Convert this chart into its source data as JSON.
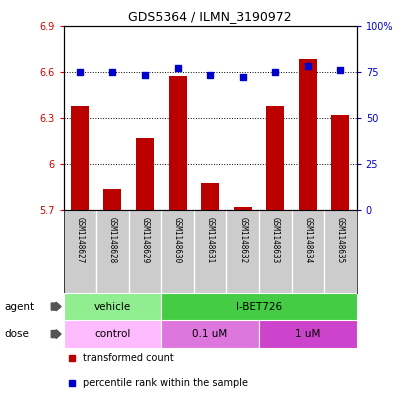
{
  "title": "GDS5364 / ILMN_3190972",
  "samples": [
    "GSM1148627",
    "GSM1148628",
    "GSM1148629",
    "GSM1148630",
    "GSM1148631",
    "GSM1148632",
    "GSM1148633",
    "GSM1148634",
    "GSM1148635"
  ],
  "bar_values": [
    6.38,
    5.84,
    6.17,
    6.57,
    5.88,
    5.72,
    6.38,
    6.68,
    6.32
  ],
  "percentile_values": [
    75,
    75,
    73,
    77,
    73,
    72,
    75,
    78,
    76
  ],
  "bar_color": "#bb0000",
  "dot_color": "#0000cc",
  "ylim_left": [
    5.7,
    6.9
  ],
  "ylim_right": [
    0,
    100
  ],
  "yticks_left": [
    5.7,
    6.0,
    6.3,
    6.6,
    6.9
  ],
  "yticks_right": [
    0,
    25,
    50,
    75,
    100
  ],
  "ytick_labels_left": [
    "5.7",
    "6",
    "6.3",
    "6.6",
    "6.9"
  ],
  "ytick_labels_right": [
    "0",
    "25",
    "50",
    "75",
    "100%"
  ],
  "hlines": [
    6.0,
    6.3,
    6.6
  ],
  "agent_groups": [
    {
      "label": "vehicle",
      "start": 0,
      "end": 3,
      "color": "#90ee90"
    },
    {
      "label": "I-BET726",
      "start": 3,
      "end": 9,
      "color": "#44cc44"
    }
  ],
  "dose_groups": [
    {
      "label": "control",
      "start": 0,
      "end": 3,
      "color": "#ffbbff"
    },
    {
      "label": "0.1 uM",
      "start": 3,
      "end": 6,
      "color": "#dd77dd"
    },
    {
      "label": "1 uM",
      "start": 6,
      "end": 9,
      "color": "#cc44cc"
    }
  ],
  "legend_items": [
    {
      "label": "transformed count",
      "color": "#bb0000"
    },
    {
      "label": "percentile rank within the sample",
      "color": "#0000cc"
    }
  ],
  "bar_bottom": 5.7,
  "left_color": "#cc0000",
  "right_color": "#0000cc",
  "bg_color": "#ffffff",
  "sample_bg": "#cccccc",
  "agent_label_color": "#555555",
  "label_arrow_color": "#888888"
}
